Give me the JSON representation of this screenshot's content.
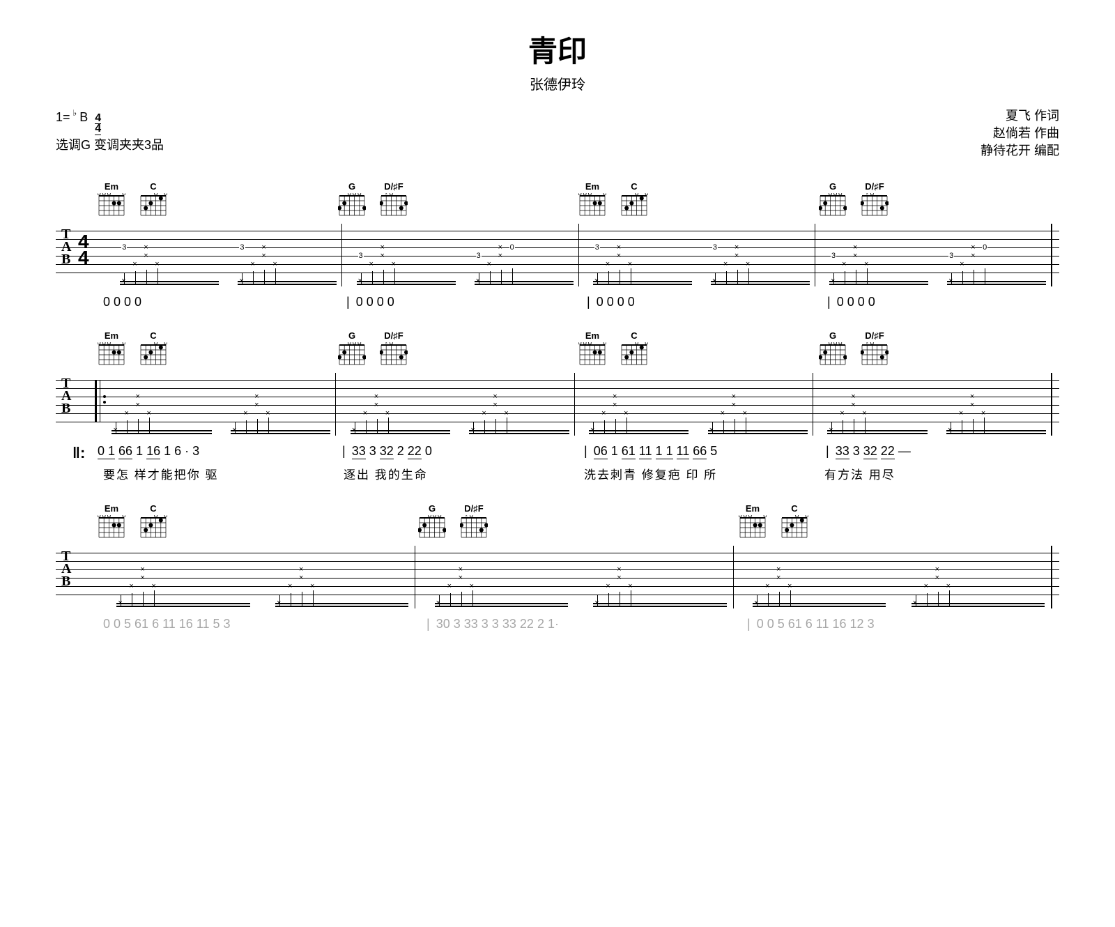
{
  "header": {
    "title": "青印",
    "artist": "张德伊玲",
    "key_prefix": "1=",
    "key_accidental": "♭",
    "key_note": "B",
    "timesig_top": "4",
    "timesig_bot": "4",
    "tuning_note": "选调G  变调夹夹3品",
    "credits": [
      "夏飞  作词",
      "赵倘若  作曲",
      "静待花开  编配"
    ]
  },
  "chords": {
    "Em": {
      "name": "Em",
      "dots": [
        [
          2,
          2
        ],
        [
          2,
          3
        ]
      ],
      "open": [
        1,
        4,
        5,
        6
      ]
    },
    "C": {
      "name": "C",
      "dots": [
        [
          1,
          2
        ],
        [
          2,
          4
        ],
        [
          3,
          5
        ]
      ],
      "open": [
        1,
        3
      ]
    },
    "G": {
      "name": "G",
      "dots": [
        [
          2,
          5
        ],
        [
          3,
          6
        ],
        [
          3,
          1
        ]
      ],
      "open": [
        2,
        3,
        4
      ]
    },
    "DF": {
      "name": "D/♯F",
      "dots": [
        [
          2,
          1
        ],
        [
          2,
          6
        ],
        [
          3,
          2
        ]
      ],
      "open": [
        4
      ],
      "muted": [
        5
      ]
    }
  },
  "systems": [
    {
      "chord_seq": [
        "Em",
        "C",
        "G",
        "DF",
        "Em",
        "C",
        "G",
        "DF"
      ],
      "chord_groups": [
        [
          "Em",
          "C"
        ],
        [
          "G",
          "DF"
        ],
        [
          "Em",
          "C"
        ],
        [
          "G",
          "DF"
        ]
      ],
      "tab_measures": [
        {
          "pattern": "p1"
        },
        {
          "pattern": "p2"
        },
        {
          "pattern": "p1"
        },
        {
          "pattern": "p2"
        }
      ],
      "jianpu": [
        "0   0   0   0",
        "0   0   0   0",
        "0   0   0   0",
        "0   0   0   0"
      ],
      "lyrics": [
        "",
        "",
        "",
        ""
      ],
      "show_timesig": true,
      "show_tab_label": true
    },
    {
      "chord_seq": [
        "Em",
        "C",
        "G",
        "DF",
        "Em",
        "C",
        "G",
        "DF"
      ],
      "chord_groups": [
        [
          "Em",
          "C"
        ],
        [
          "G",
          "DF"
        ],
        [
          "Em",
          "C"
        ],
        [
          "G",
          "DF"
        ]
      ],
      "tab_measures": [
        {
          "pattern": "px",
          "repeat": true
        },
        {
          "pattern": "px"
        },
        {
          "pattern": "px"
        },
        {
          "pattern": "px"
        }
      ],
      "jianpu": [
        "0 1 6͟6 1  1͟6 1  6͟ · 3",
        "3͟3 3  3͟2 2  2͟2 0",
        "0͟6 1  6͟1  1͟1 1 1  1͟1 6͟6 5",
        "3͟3 3  3͟2 2͟2   —"
      ],
      "lyrics": [
        "要怎  样才能把你  驱",
        "逐出  我的生命",
        "洗去刺青  修复疤  印  所",
        "有方法  用尽"
      ],
      "repeat_start": true,
      "show_tab_label": true,
      "jianpu_prefix": "‖:"
    },
    {
      "chord_seq": [
        "Em",
        "C",
        "G",
        "DF",
        "Em",
        "C"
      ],
      "chord_groups": [
        [
          "Em",
          "C"
        ],
        [
          "G",
          "DF"
        ],
        [
          "Em",
          "C"
        ]
      ],
      "tab_measures": [
        {
          "pattern": "px"
        },
        {
          "pattern": "px"
        },
        {
          "pattern": "px"
        }
      ],
      "jianpu_faded": [
        "0 0 5  6͟1 6 1͟1  1͟6  1͟1 5 3",
        "3͟0 3  3͟3 3 3  3͟3  2͟2 2 1·",
        "0 0 5  6͟1 6 1͟1  1͟6  1͟2 3"
      ],
      "lyrics": [
        "",
        "",
        ""
      ],
      "show_tab_label": true,
      "measures_count": 3
    }
  ],
  "tab_patterns": {
    "p1": {
      "desc": "Em-C fingerpick with fret 3"
    },
    "p2": {
      "desc": "G-DF fingerpick with frets"
    },
    "px": {
      "desc": "all-x strum pattern"
    }
  },
  "colors": {
    "bg": "#ffffff",
    "ink": "#000000",
    "faded": "#b0b0b0"
  }
}
